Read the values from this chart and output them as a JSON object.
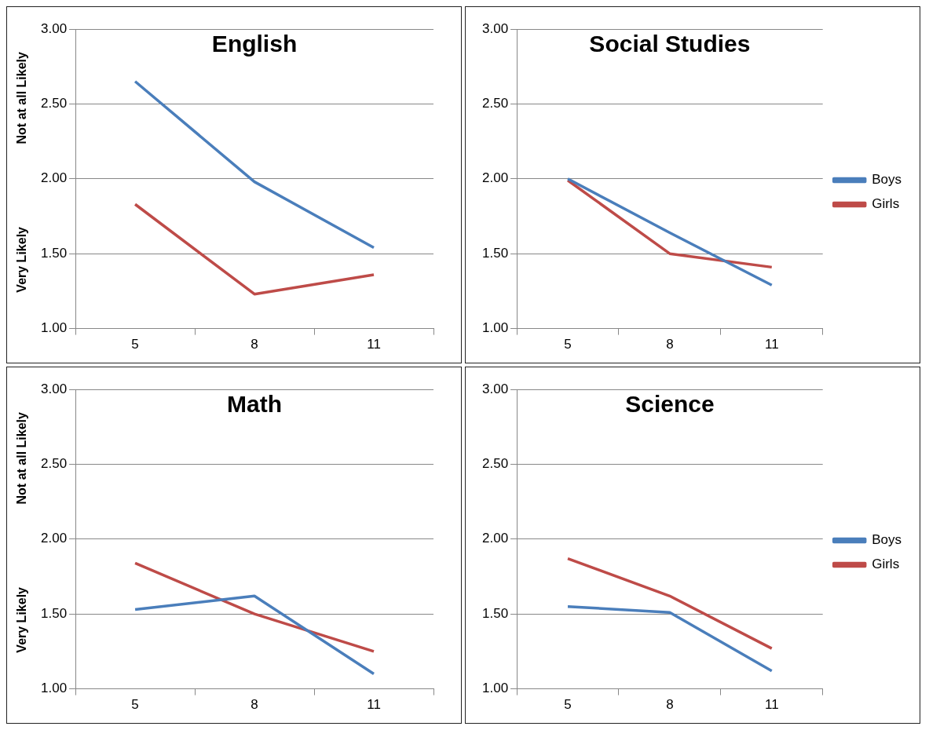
{
  "chart_data": [
    {
      "type": "line",
      "title": "English",
      "ylabel": "Not at all Likely",
      "annotations": [
        "Very Likely"
      ],
      "categories": [
        "5",
        "8",
        "11"
      ],
      "series": [
        {
          "color": "#4a7ebb",
          "values": [
            2.65,
            1.98,
            1.54
          ]
        },
        {
          "color": "#be4b48",
          "values": [
            1.83,
            1.23,
            1.36
          ]
        }
      ],
      "ylim": [
        1,
        3
      ],
      "yticks": [
        {
          "value": 1,
          "label": "1.00"
        },
        {
          "value": 1.5,
          "label": "1.50"
        },
        {
          "value": 2,
          "label": "2.00"
        },
        {
          "value": 2.5,
          "label": "2.50"
        },
        {
          "value": 3,
          "label": "3.00"
        }
      ],
      "grid": "y",
      "legend": false,
      "marker": "none",
      "line_style": "solid"
    },
    {
      "type": "line",
      "title": "Social Studies",
      "categories": [
        "5",
        "8",
        "11"
      ],
      "series": [
        {
          "name": "Boys",
          "color": "#4a7ebb",
          "values": [
            2.0,
            1.64,
            1.29
          ]
        },
        {
          "name": "Girls",
          "color": "#be4b48",
          "values": [
            1.99,
            1.5,
            1.41
          ]
        }
      ],
      "ylim": [
        1,
        3
      ],
      "yticks": [
        {
          "value": 1,
          "label": "1.00"
        },
        {
          "value": 1.5,
          "label": "1.50"
        },
        {
          "value": 2,
          "label": "2.00"
        },
        {
          "value": 2.5,
          "label": "2.50"
        },
        {
          "value": 3,
          "label": "3.00"
        }
      ],
      "grid": "y",
      "legend": "right",
      "marker": "none",
      "line_style": "solid"
    },
    {
      "type": "line",
      "title": "Math",
      "ylabel": "Not at all Likely",
      "annotations": [
        "Very Likely"
      ],
      "categories": [
        "5",
        "8",
        "11"
      ],
      "series": [
        {
          "color": "#4a7ebb",
          "values": [
            1.53,
            1.62,
            1.1
          ]
        },
        {
          "color": "#be4b48",
          "values": [
            1.84,
            1.5,
            1.25
          ]
        }
      ],
      "ylim": [
        1,
        3
      ],
      "yticks": [
        {
          "value": 1,
          "label": "1.00"
        },
        {
          "value": 1.5,
          "label": "1.50"
        },
        {
          "value": 2,
          "label": "2.00"
        },
        {
          "value": 2.5,
          "label": "2.50"
        },
        {
          "value": 3,
          "label": "3.00"
        }
      ],
      "grid": "y",
      "legend": false,
      "marker": "none",
      "line_style": "solid"
    },
    {
      "type": "line",
      "title": "Science",
      "categories": [
        "5",
        "8",
        "11"
      ],
      "series": [
        {
          "name": "Boys",
          "color": "#4a7ebb",
          "values": [
            1.55,
            1.51,
            1.12
          ]
        },
        {
          "name": "Girls",
          "color": "#be4b48",
          "values": [
            1.87,
            1.62,
            1.27
          ]
        }
      ],
      "ylim": [
        1,
        3
      ],
      "yticks": [
        {
          "value": 1,
          "label": "1.00"
        },
        {
          "value": 1.5,
          "label": "1.50"
        },
        {
          "value": 2,
          "label": "2.00"
        },
        {
          "value": 2.5,
          "label": "2.50"
        },
        {
          "value": 3,
          "label": "3.00"
        }
      ],
      "grid": "y",
      "legend": "right",
      "marker": "none",
      "line_style": "solid"
    }
  ]
}
